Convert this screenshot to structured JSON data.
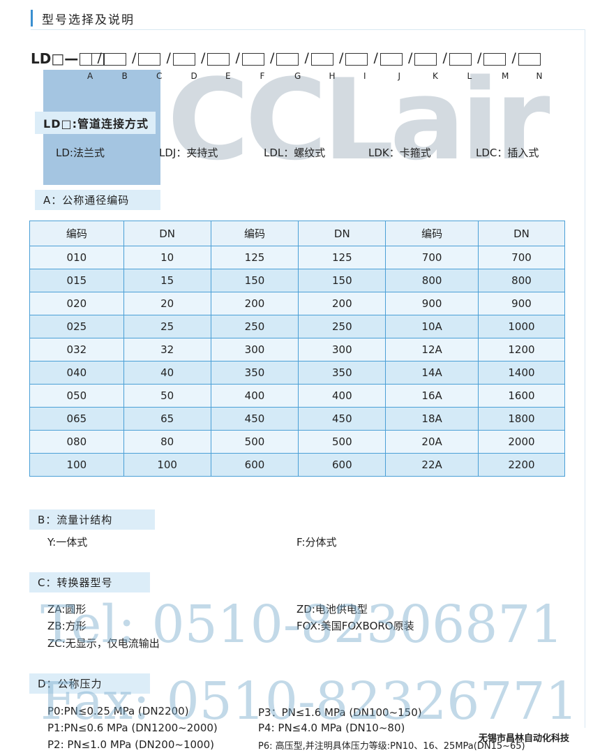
{
  "header": {
    "title": "型号选择及说明"
  },
  "model_code": {
    "prefix": "LD□—",
    "letters": [
      "A",
      "B",
      "C",
      "D",
      "E",
      "F",
      "G",
      "H",
      "I",
      "J",
      "K",
      "L",
      "M",
      "N"
    ]
  },
  "connection": {
    "title": "LD□:管道连接方式",
    "items": [
      "LD:法兰式",
      "LDJ：夹持式",
      "LDL：螺纹式",
      "LDK：卡箍式",
      "LDC：插入式"
    ]
  },
  "section_a": {
    "title": "A：公称通径编码",
    "table": {
      "header": [
        "编码",
        "DN",
        "编码",
        "DN",
        "编码",
        "DN"
      ],
      "rows": [
        [
          "010",
          "10",
          "125",
          "125",
          "700",
          "700"
        ],
        [
          "015",
          "15",
          "150",
          "150",
          "800",
          "800"
        ],
        [
          "020",
          "20",
          "200",
          "200",
          "900",
          "900"
        ],
        [
          "025",
          "25",
          "250",
          "250",
          "10A",
          "1000"
        ],
        [
          "032",
          "32",
          "300",
          "300",
          "12A",
          "1200"
        ],
        [
          "040",
          "40",
          "350",
          "350",
          "14A",
          "1400"
        ],
        [
          "050",
          "50",
          "400",
          "400",
          "16A",
          "1600"
        ],
        [
          "065",
          "65",
          "450",
          "450",
          "18A",
          "1800"
        ],
        [
          "080",
          "80",
          "500",
          "500",
          "20A",
          "2000"
        ],
        [
          "100",
          "100",
          "600",
          "600",
          "22A",
          "2200"
        ]
      ]
    }
  },
  "section_b": {
    "title": "B：流量计结构",
    "items": [
      "Y:一体式",
      "F:分体式"
    ]
  },
  "section_c": {
    "title": "C：转换器型号",
    "items": [
      "ZA:圆形",
      "ZB:方形",
      "ZC:无显示，仅电流输出",
      "ZD:电池供电型",
      "FOX:美国FOXBORO原装"
    ]
  },
  "section_d": {
    "title": "D：公称压力",
    "items": [
      "P0:PN≤0.25 MPa (DN2200)",
      "P1:PN≤0.6 MPa (DN1200~2000)",
      "P2: PN≤1.0 MPa (DN200~1000)",
      "P3：PN≤1.6 MPa (DN100~150)",
      "P4: PN≤4.0 MPa (DN10~80)",
      "P6: 高压型,并注明具体压力等级:PN10、16、25MPa(DN15~65)"
    ]
  },
  "watermark": {
    "logo": "CCLair",
    "company": "昌林自动化",
    "tel": "Tel: 0510-82306871",
    "fax": "Fax: 0510-82326771"
  },
  "footer": {
    "company": "无锡市昌林自动化科技"
  }
}
